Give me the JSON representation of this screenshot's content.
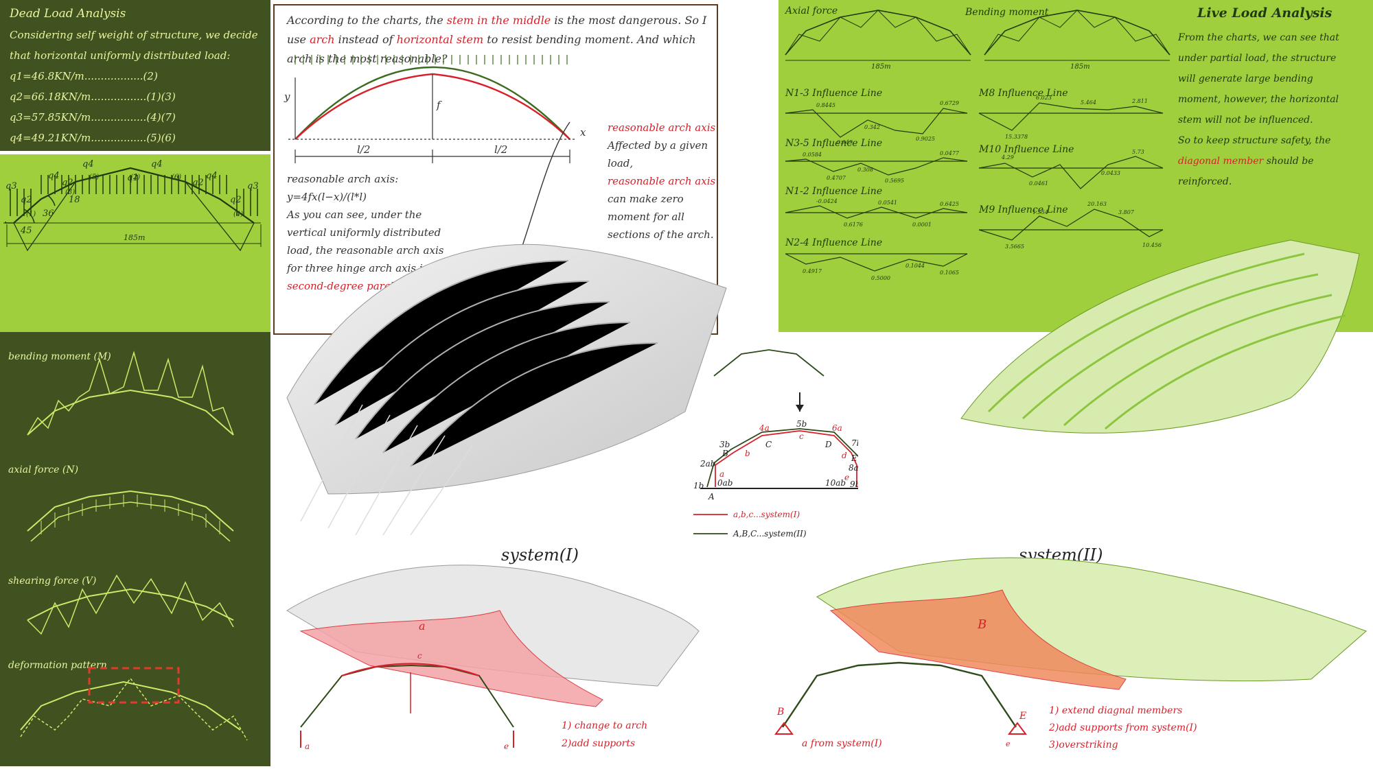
{
  "dead_load": {
    "title": "Dead Load Analysis",
    "intro": "Considering self weight of structure, we decide that horizontal uniformly distributed load:",
    "loads": [
      "q1=46.8KN/m..................(2)",
      "q2=66.18KN/m.................(1)(3)",
      "q3=57.85KN/m.................(4)(7)",
      "q4=49.21KN/m.................(5)(6)"
    ],
    "figure": {
      "q_labels": [
        "q4",
        "q4",
        "q3",
        "q2",
        "q2",
        "q1",
        "q2",
        "q4",
        "q4",
        "q3",
        "q2"
      ],
      "member_labels": [
        "(1)",
        "(3)",
        "(5)",
        "(2)",
        "(6)",
        "(4)"
      ],
      "angles": [
        "45",
        "36",
        "18"
      ],
      "span": "185m"
    }
  },
  "force_diagrams": {
    "labels": [
      "bending moment (M)",
      "axial force (N)",
      "shearing force (V)",
      "deformation pattern"
    ]
  },
  "arch_axis": {
    "paragraph_parts": [
      "According to the charts, the ",
      "stem in the middle",
      " is the most dangerous. So I use ",
      "arch",
      " instead of ",
      "horizontal stem",
      " to resist bending moment. And which arch is the most reasonable?"
    ],
    "axis_y": "y",
    "axis_x": "x",
    "f_label": "f",
    "half_span_left": "l/2",
    "half_span_right": "l/2",
    "formula_title": "reasonable arch axis:",
    "formula": "y=4fx(l−x)/(l*l)",
    "explain": "As you can see, under the vertical uniformly distributed load, the reasonable arch axis for three hinge arch axis is",
    "explain_red": "second-degree parabola.",
    "side_title": "reasonable arch axis",
    "side_text_1": "Affected by a given load,",
    "side_text_red": "reasonable arch axis",
    "side_text_2": "can make zero moment for all sections of the arch."
  },
  "live_load": {
    "title": "Live Load Analysis",
    "text_1": "From the charts, we can see that under partial load, the structure will generate large bending moment, however, the horizontal stem will not be influenced.",
    "text_2": "So to keep structure safety, the",
    "text_red": "diagonal member",
    "text_3": "should be reinforced.",
    "axial_title": "Axial force",
    "moment_title": "Bending moment",
    "span_left": "185m",
    "span_right": "185m",
    "influence_lines": [
      {
        "name": "N1-3 Influence Line",
        "values": [
          "0.8445",
          "0.342",
          "0.6729",
          "0.949",
          "0.9025"
        ]
      },
      {
        "name": "N3-5 Influence Line",
        "values": [
          "0.0584",
          "0.4707",
          "0.308",
          "0.0477",
          "0.5695"
        ]
      },
      {
        "name": "N1-2 Influence Line",
        "values": [
          "-0.0424",
          "0.0541",
          "0.6425",
          "0.6176",
          "0.0001"
        ]
      },
      {
        "name": "N2-4 Influence Line",
        "values": [
          "0.4917",
          "0.5000",
          "0.1044",
          "0.1065"
        ]
      },
      {
        "name": "M8 Influence Line",
        "values": [
          "6.023",
          "5.464",
          "2.811",
          "15.3378"
        ]
      },
      {
        "name": "M10 Influence Line",
        "values": [
          "4.29",
          "0.0461",
          "0.0433",
          "5.73"
        ]
      },
      {
        "name": "M9 Influence Line",
        "values": [
          "1.554",
          "20.163",
          "3.807",
          "3.5665",
          "10.456"
        ]
      }
    ]
  },
  "systems_diagram": {
    "points": [
      "1b",
      "2ab",
      "3b",
      "4a",
      "5b",
      "6a",
      "7b",
      "8ab",
      "9b",
      "10ab",
      "0ab"
    ],
    "letters_black": [
      "A",
      "B",
      "C",
      "D",
      "E",
      "F"
    ],
    "letters_red": [
      "a",
      "b",
      "c",
      "d",
      "e"
    ],
    "legend_1": "a,b,c...system(I)",
    "legend_2": "A,B,C...system(II)"
  },
  "system1": {
    "title": "system(I)",
    "marker_a": "a",
    "marker_c": "c",
    "marker_e": "e",
    "notes": [
      "1) change to arch",
      "2)add supports"
    ]
  },
  "system2": {
    "title": "system(II)",
    "marker": "B",
    "marker_b": "B",
    "marker_e": "E",
    "marker_sub_e": "e",
    "from_text": "a from system(I)",
    "notes": [
      "1) extend diagnal members",
      "2)add supports from system(I)",
      "3)overstriking"
    ]
  },
  "colors": {
    "dark_green": "#3f5220",
    "lime": "#9fcf3c",
    "red": "#d8202a",
    "stroke_yellow": "#e9f5a0"
  }
}
